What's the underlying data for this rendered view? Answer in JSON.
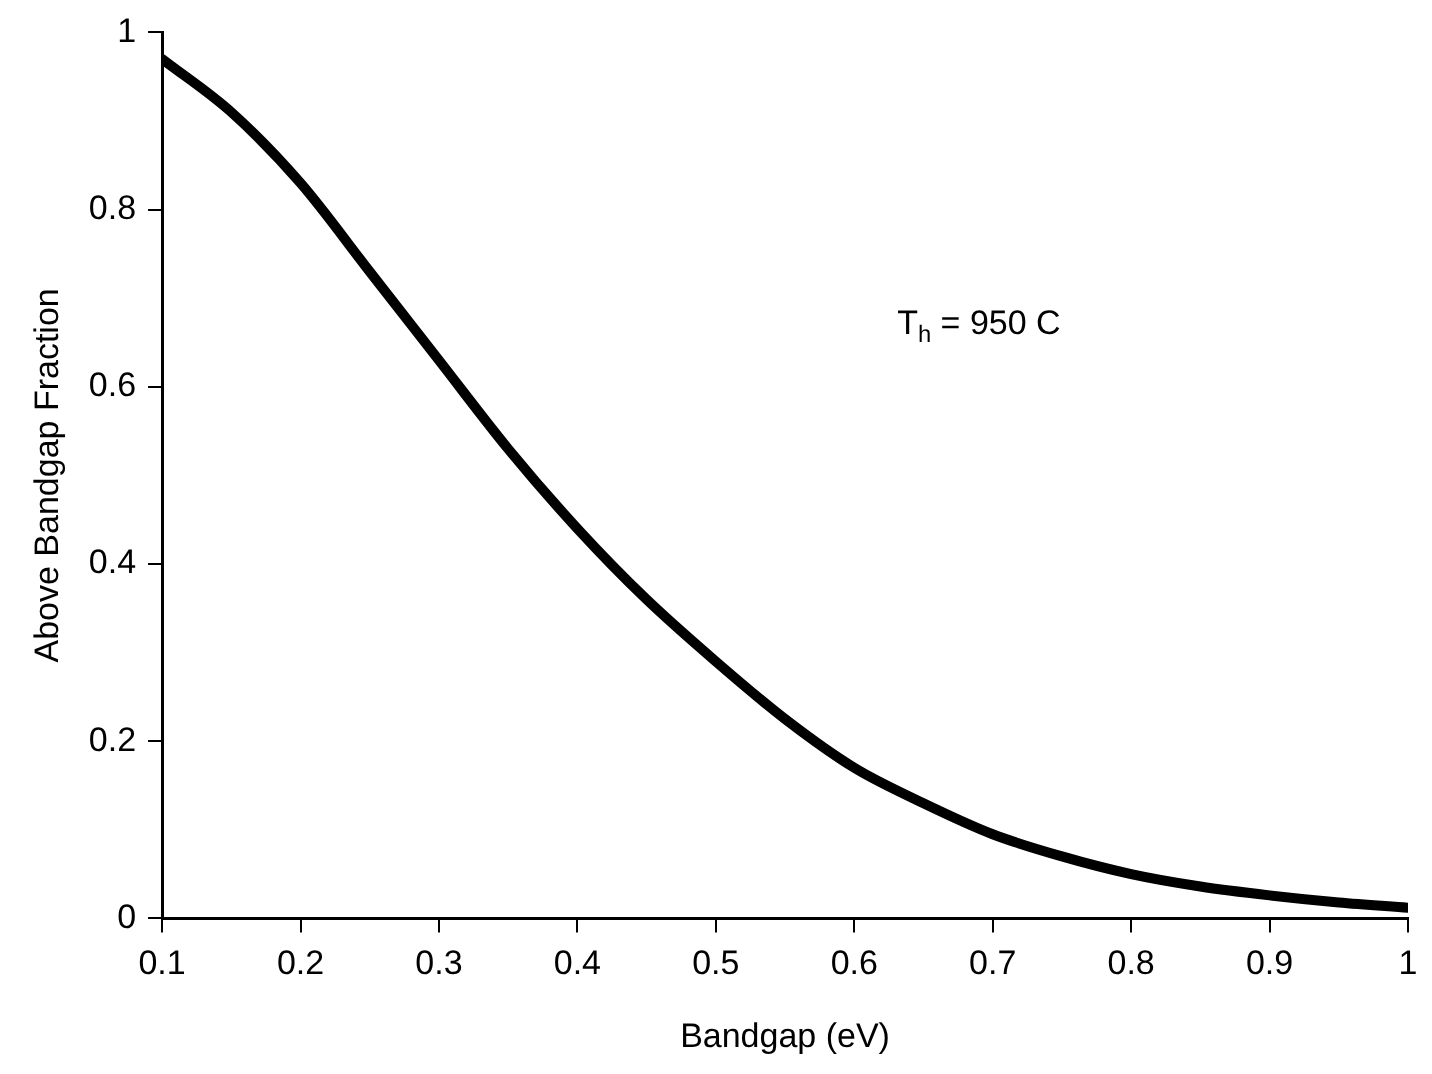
{
  "chart_data": {
    "type": "line",
    "xlabel": "Bandgap (eV)",
    "ylabel": "Above Bandgap Fraction",
    "annotations": [
      "T$_{h}$ = 950 C"
    ],
    "x": [
      0.1,
      0.15,
      0.2,
      0.25,
      0.3,
      0.35,
      0.4,
      0.45,
      0.5,
      0.55,
      0.6,
      0.65,
      0.7,
      0.75,
      0.8,
      0.85,
      0.9,
      0.95,
      1.0
    ],
    "series": [
      {
        "color": "#000000",
        "values": [
          0.97,
          0.91,
          0.83,
          0.73,
          0.63,
          0.53,
          0.44,
          0.36,
          0.29,
          0.225,
          0.17,
          0.13,
          0.095,
          0.07,
          0.05,
          0.036,
          0.026,
          0.018,
          0.012
        ]
      }
    ],
    "xlim": [
      0.1,
      1
    ],
    "xticks": [
      0.1,
      0.2,
      0.3,
      0.4,
      0.5,
      0.6,
      0.7,
      0.8,
      0.9,
      {
        "value": 1,
        "label": "1"
      }
    ],
    "ylim": [
      0,
      1
    ],
    "yticks": [
      0,
      0.2,
      0.4,
      0.6,
      0.8,
      {
        "value": 1,
        "label": "1"
      }
    ],
    "grid": false,
    "legend": false,
    "marker": "none",
    "line_style": "solid"
  }
}
